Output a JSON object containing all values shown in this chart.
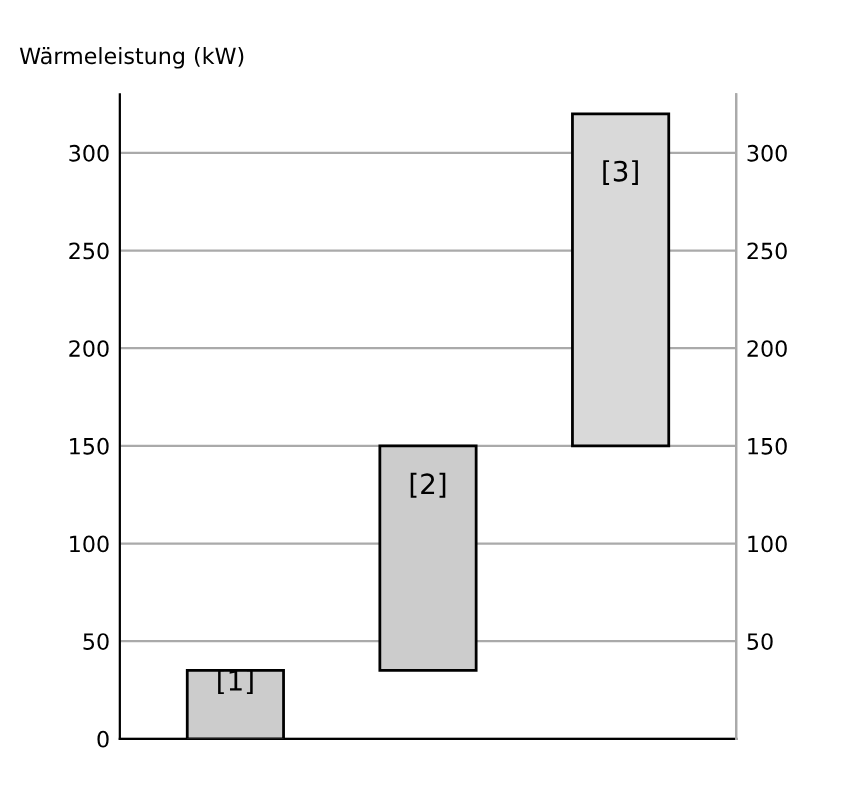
{
  "chart_data": {
    "type": "bar",
    "ylabel": "Wärmeleistung (kW)",
    "categories": [
      "[1]",
      "[2]",
      "[3]"
    ],
    "values": [
      35,
      115,
      170
    ],
    "base": [
      0,
      35,
      150
    ],
    "colors": [
      "#cccccc",
      "#cccccc",
      "#d9d9d9"
    ],
    "ylim": [
      0,
      330
    ],
    "yticks": [
      0,
      50,
      100,
      150,
      200,
      250,
      300
    ],
    "y2lim": [
      0,
      330
    ],
    "y2ticks": [
      50,
      100,
      150,
      200,
      250,
      300
    ],
    "grid": "y"
  }
}
